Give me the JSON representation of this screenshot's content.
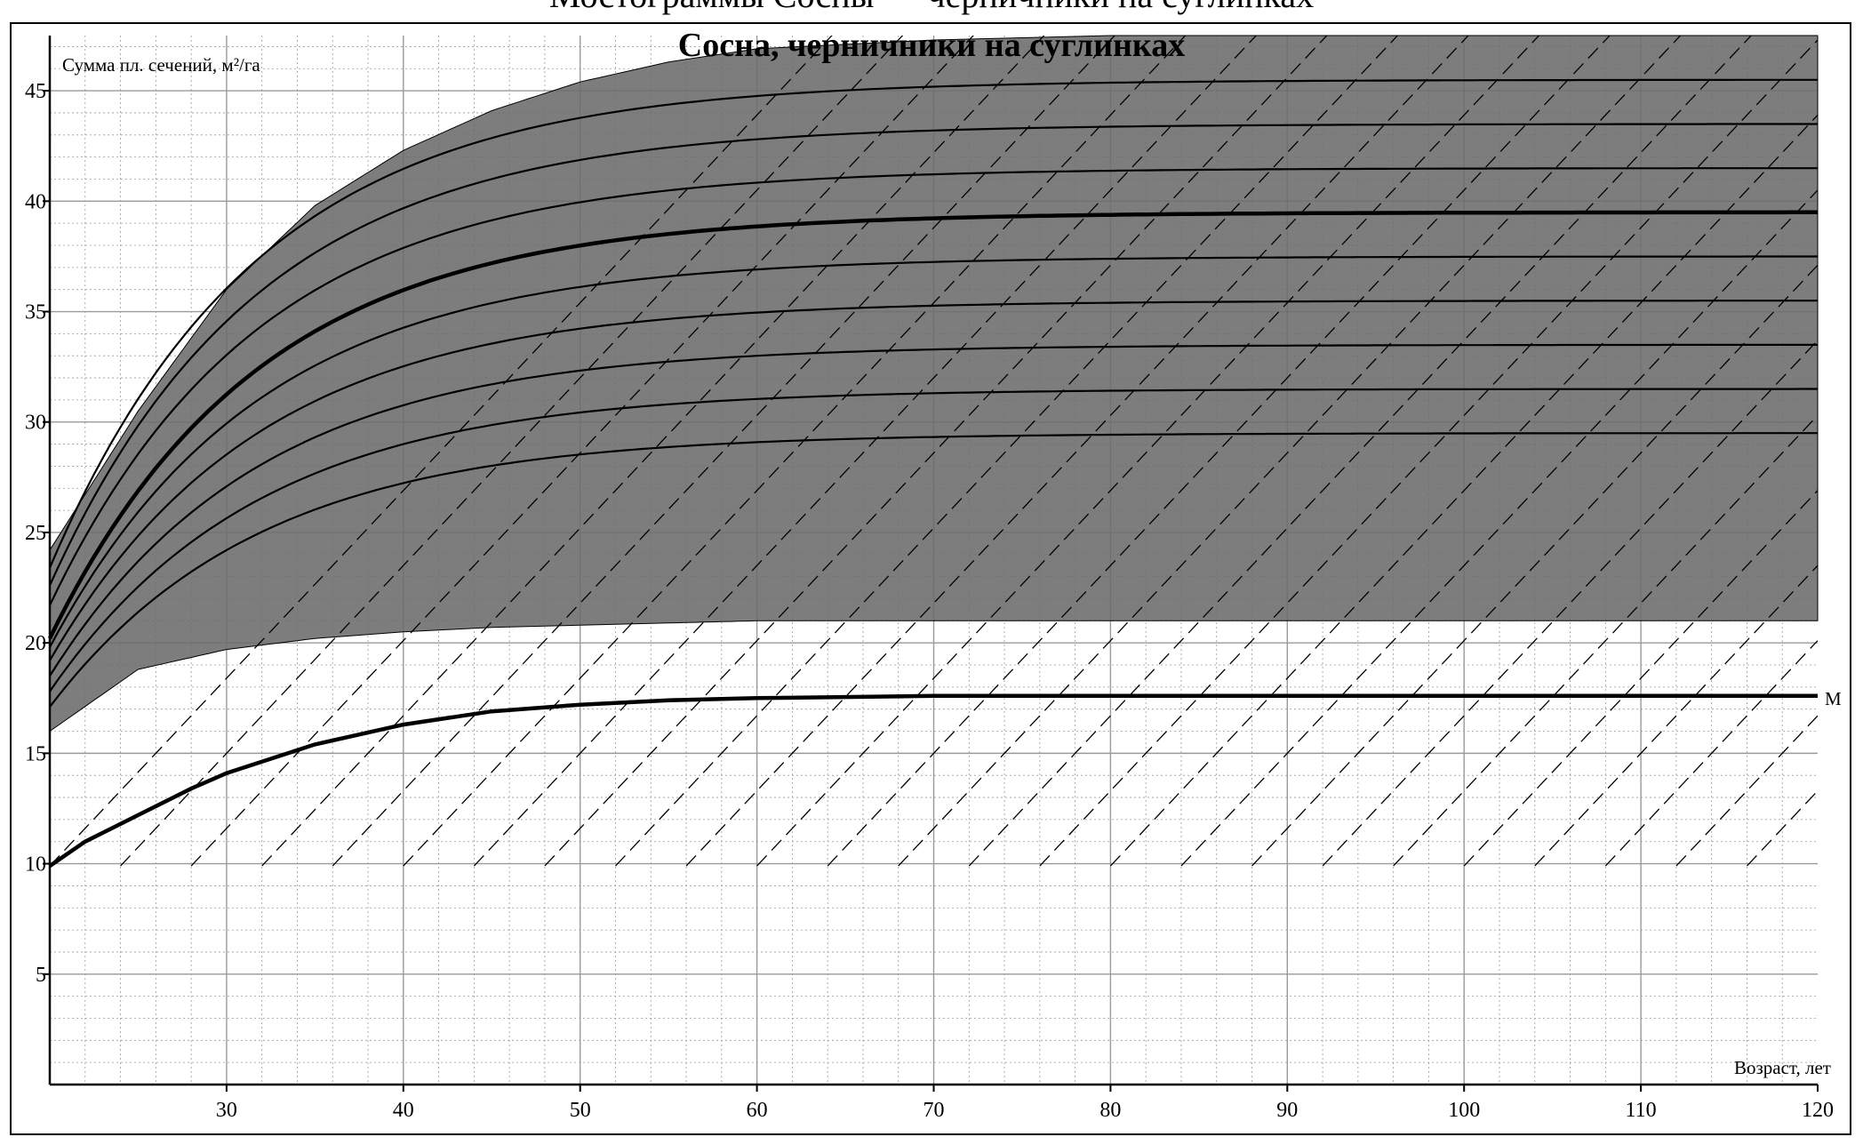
{
  "page_top_text": "Мостограммы Сосны — черничники на суглинках",
  "chart_data": {
    "type": "line",
    "title": "Сосна, черничники на суглинках",
    "xlabel": "Возраст, лет",
    "ylabel": "Сумма пл. сечений, м²/га",
    "xlim": [
      20,
      120
    ],
    "ylim": [
      0,
      47.5
    ],
    "xticks": [
      30,
      40,
      50,
      60,
      70,
      80,
      90,
      100,
      110,
      120
    ],
    "yticks": [
      5,
      10,
      15,
      20,
      25,
      30,
      35,
      40,
      45
    ],
    "grid": true,
    "colors": {
      "band": "#6b6b6b",
      "line": "#000000",
      "grid": "#9a9a9a",
      "background": "#ffffff"
    },
    "band": {
      "upper": {
        "x": [
          20,
          25,
          30,
          35,
          40,
          45,
          50,
          55,
          60,
          70,
          80,
          90,
          100,
          110,
          120
        ],
        "y": [
          24.2,
          30.5,
          36.0,
          39.8,
          42.3,
          44.1,
          45.4,
          46.3,
          46.9,
          47.3,
          47.5,
          47.5,
          47.5,
          47.5,
          47.5
        ]
      },
      "lower": {
        "x": [
          20,
          25,
          30,
          35,
          40,
          45,
          50,
          55,
          60,
          70,
          80,
          90,
          100,
          110,
          120
        ],
        "y": [
          16.0,
          18.8,
          19.7,
          20.2,
          20.5,
          20.7,
          20.8,
          20.9,
          21.0,
          21.0,
          21.0,
          21.0,
          21.0,
          21.0,
          21.0
        ]
      }
    },
    "series": [
      {
        "asymptote": 45.5,
        "y0": 23.4,
        "bold": false
      },
      {
        "asymptote": 43.5,
        "y0": 22.6,
        "bold": false
      },
      {
        "asymptote": 41.5,
        "y0": 21.7,
        "bold": false
      },
      {
        "asymptote": 39.5,
        "y0": 20.2,
        "bold": true
      },
      {
        "asymptote": 37.5,
        "y0": 19.8,
        "bold": false
      },
      {
        "asymptote": 35.5,
        "y0": 19.2,
        "bold": false
      },
      {
        "asymptote": 33.5,
        "y0": 18.5,
        "bold": false
      },
      {
        "asymptote": 31.5,
        "y0": 17.8,
        "bold": false
      },
      {
        "asymptote": 29.5,
        "y0": 17.1,
        "bold": false
      }
    ],
    "minimum_line": {
      "label": "M",
      "x": [
        20,
        22,
        25,
        28,
        30,
        35,
        40,
        45,
        50,
        55,
        60,
        70,
        80,
        90,
        100,
        110,
        120
      ],
      "y": [
        9.9,
        11.0,
        12.2,
        13.4,
        14.1,
        15.4,
        16.3,
        16.9,
        17.2,
        17.4,
        17.5,
        17.6,
        17.6,
        17.6,
        17.6,
        17.6,
        17.6
      ]
    },
    "dashed_lines": {
      "slope_y_per_year": 0.85,
      "spacing_years": 4,
      "count": 30
    }
  }
}
